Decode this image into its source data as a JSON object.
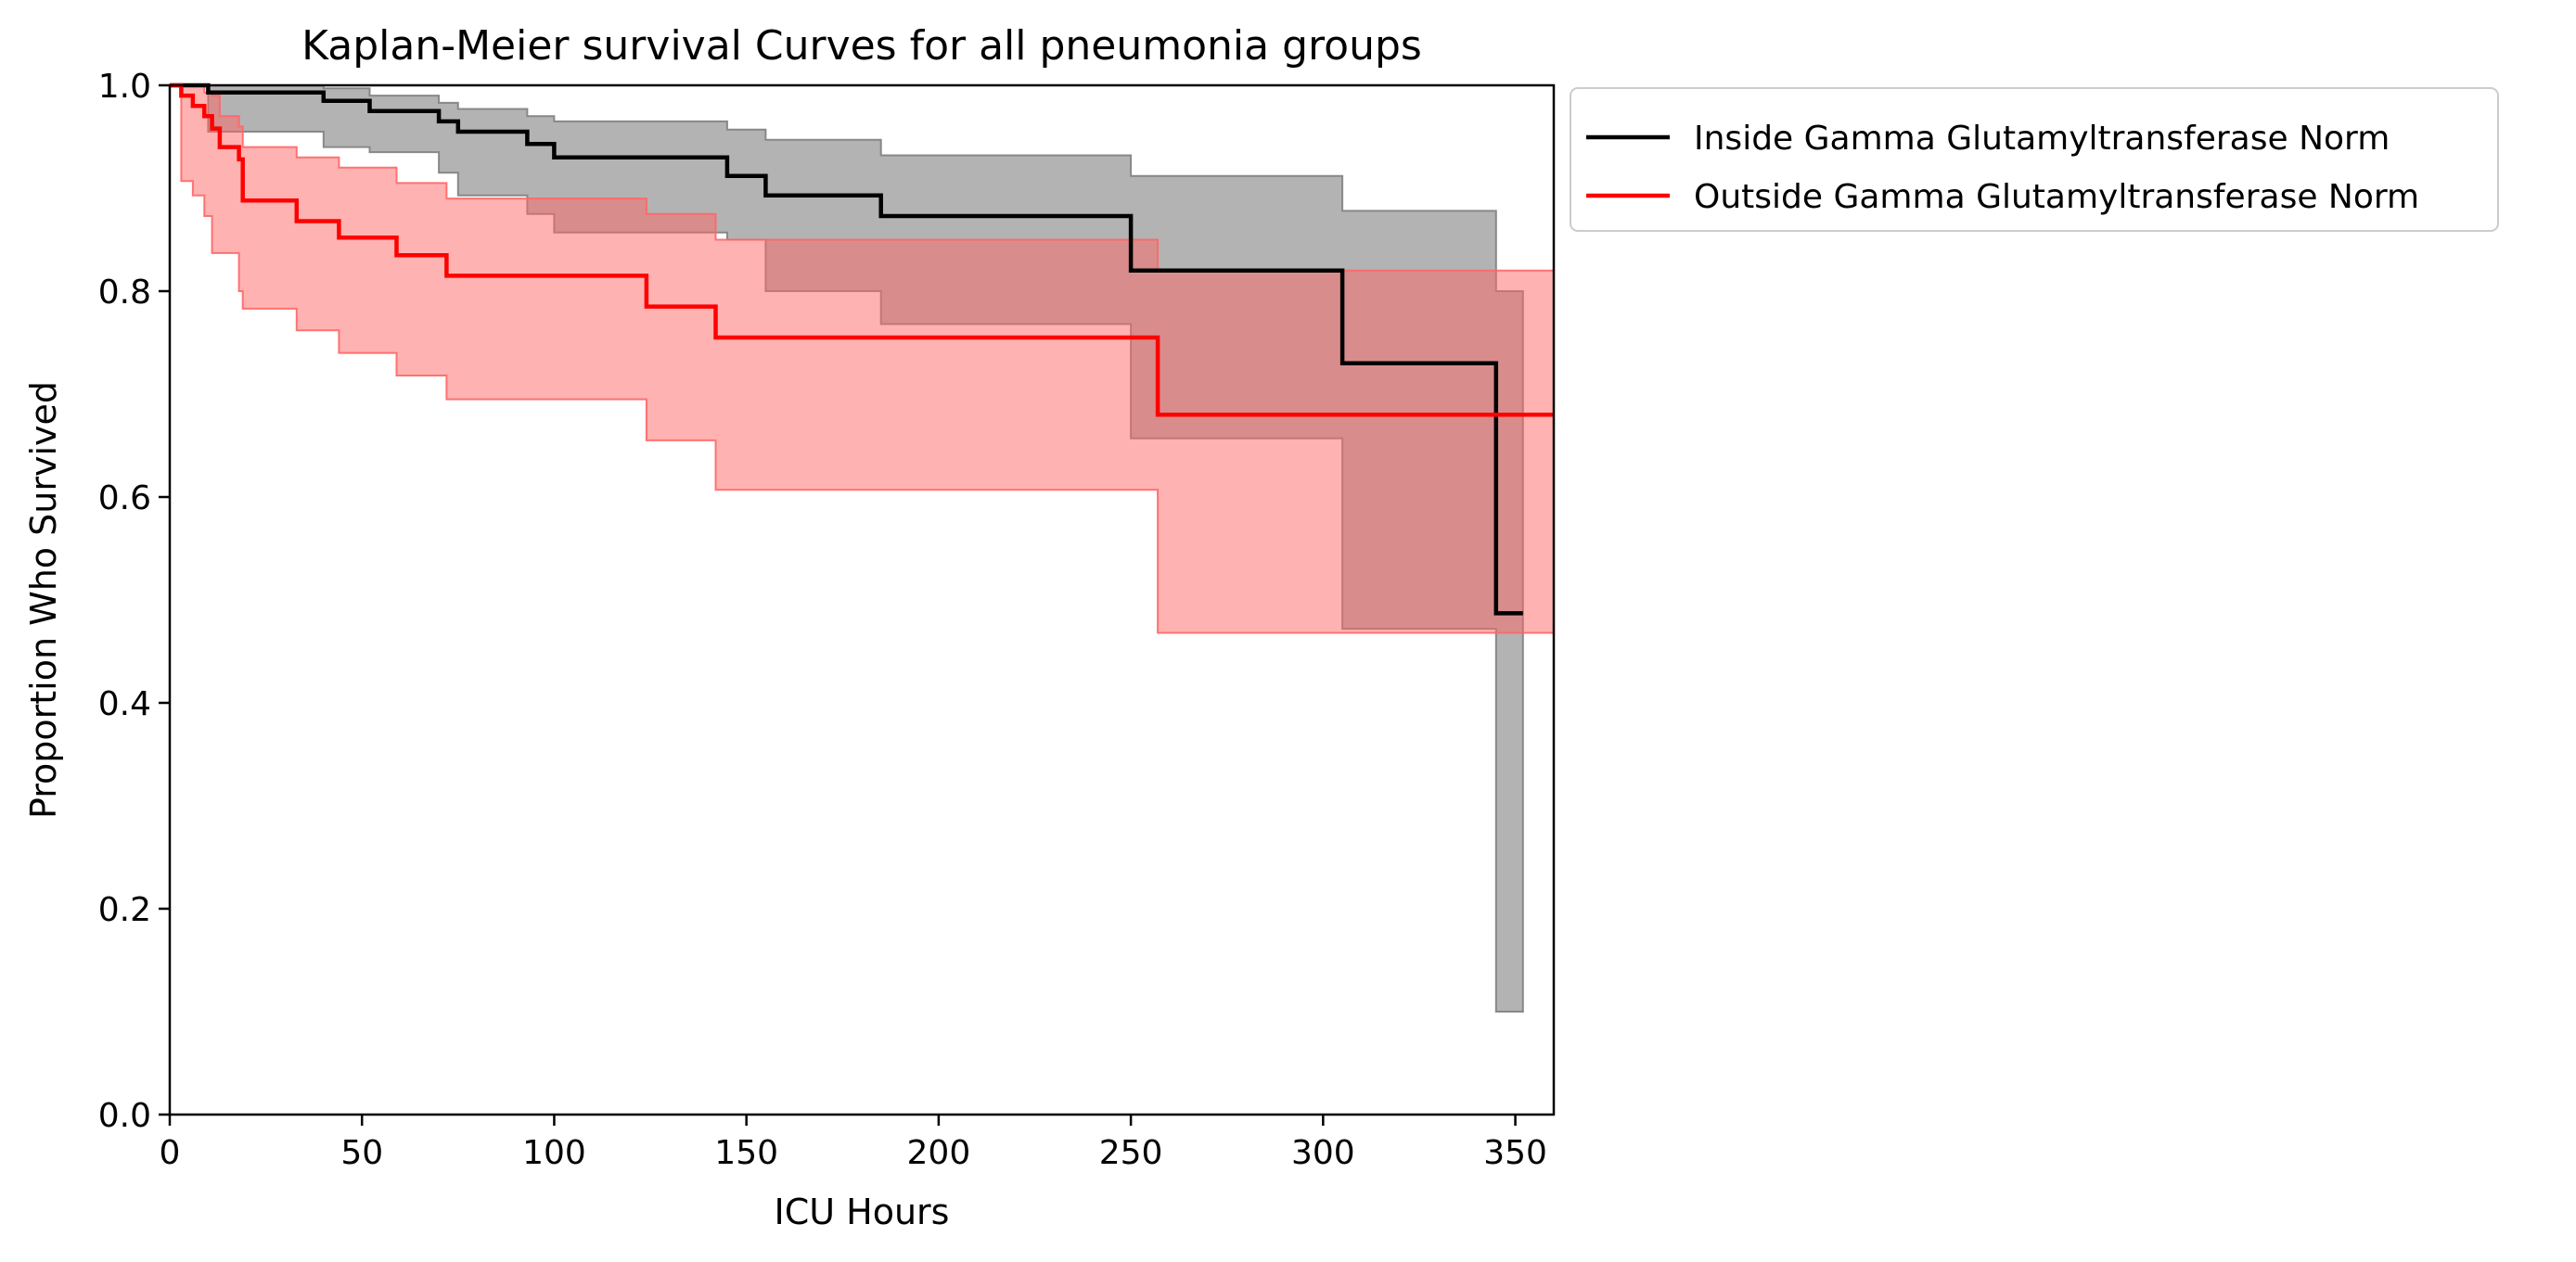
{
  "chart_data": {
    "type": "line",
    "title": "Kaplan-Meier survival Curves for all pneumonia groups",
    "xlabel": "ICU Hours",
    "ylabel": "Proportion Who Survived",
    "xlim": [
      0,
      360
    ],
    "ylim": [
      0,
      1.0
    ],
    "xticks": [
      "0",
      "50",
      "100",
      "150",
      "200",
      "250",
      "300",
      "350"
    ],
    "yticks": [
      "0.0",
      "0.2",
      "0.4",
      "0.6",
      "0.8",
      "1.0"
    ],
    "grid": false,
    "legend_position": "outside-top-right",
    "series": [
      {
        "name": "Inside Gamma Glutamyltransferase Norm",
        "color": "#000000",
        "band_color": "#808080",
        "x": [
          0,
          10,
          40,
          52,
          70,
          75,
          93,
          100,
          145,
          155,
          185,
          250,
          305,
          345,
          352
        ],
        "y": [
          1.0,
          0.993,
          0.985,
          0.975,
          0.965,
          0.955,
          0.943,
          0.93,
          0.912,
          0.893,
          0.873,
          0.82,
          0.73,
          0.487,
          0.487
        ],
        "ci_x": [
          0,
          10,
          40,
          52,
          70,
          75,
          93,
          100,
          125,
          145,
          155,
          185,
          250,
          305,
          345,
          352
        ],
        "ci_lower": [
          1.0,
          0.955,
          0.94,
          0.935,
          0.915,
          0.893,
          0.875,
          0.857,
          0.857,
          0.85,
          0.8,
          0.768,
          0.657,
          0.472,
          0.1,
          0.1
        ],
        "ci_upper": [
          1.0,
          1.0,
          0.997,
          0.99,
          0.983,
          0.977,
          0.97,
          0.965,
          0.965,
          0.957,
          0.947,
          0.932,
          0.912,
          0.878,
          0.8,
          0.8
        ]
      },
      {
        "name": "Outside Gamma Glutamyltransferase Norm",
        "color": "#ff0000",
        "band_color": "#ff6666",
        "x": [
          0,
          3,
          6,
          9,
          11,
          13,
          18,
          19,
          33,
          44,
          59,
          72,
          124,
          142,
          257,
          360
        ],
        "y": [
          1.0,
          0.99,
          0.98,
          0.97,
          0.958,
          0.94,
          0.928,
          0.888,
          0.868,
          0.852,
          0.835,
          0.815,
          0.785,
          0.755,
          0.68,
          0.68
        ],
        "ci_x": [
          0,
          3,
          6,
          9,
          11,
          13,
          18,
          19,
          33,
          44,
          59,
          72,
          124,
          142,
          257,
          360
        ],
        "ci_lower": [
          1.0,
          0.907,
          0.893,
          0.873,
          0.837,
          0.837,
          0.8,
          0.783,
          0.762,
          0.74,
          0.718,
          0.695,
          0.655,
          0.607,
          0.468,
          0.468
        ],
        "ci_upper": [
          1.0,
          1.0,
          1.0,
          0.993,
          0.99,
          0.97,
          0.96,
          0.94,
          0.93,
          0.92,
          0.905,
          0.89,
          0.875,
          0.85,
          0.82,
          0.82
        ]
      }
    ]
  }
}
